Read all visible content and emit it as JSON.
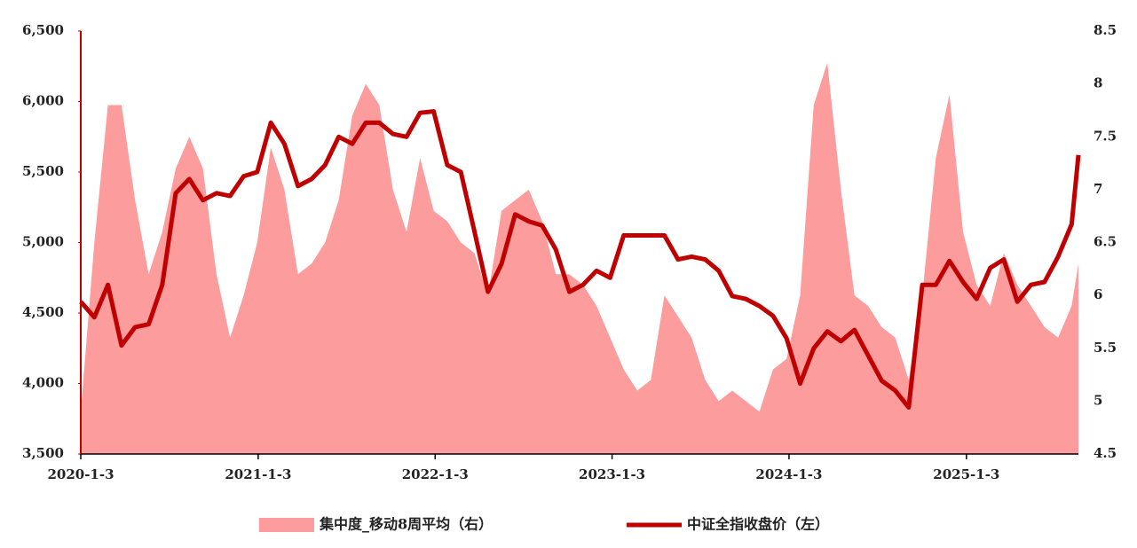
{
  "chart_data": {
    "type": "line",
    "x": [
      "2020-01-03",
      "2020-01-31",
      "2020-02-28",
      "2020-03-27",
      "2020-04-24",
      "2020-05-22",
      "2020-06-19",
      "2020-07-17",
      "2020-08-14",
      "2020-09-11",
      "2020-10-09",
      "2020-11-06",
      "2020-12-04",
      "2021-01-01",
      "2021-01-29",
      "2021-02-26",
      "2021-03-26",
      "2021-04-23",
      "2021-05-21",
      "2021-06-18",
      "2021-07-16",
      "2021-08-13",
      "2021-09-10",
      "2021-10-08",
      "2021-11-05",
      "2021-12-03",
      "2021-12-31",
      "2022-01-28",
      "2022-02-25",
      "2022-03-25",
      "2022-04-22",
      "2022-05-20",
      "2022-06-17",
      "2022-07-15",
      "2022-08-12",
      "2022-09-09",
      "2022-10-07",
      "2022-11-04",
      "2022-12-02",
      "2022-12-30",
      "2023-01-27",
      "2023-02-24",
      "2023-03-24",
      "2023-04-21",
      "2023-05-19",
      "2023-06-16",
      "2023-07-14",
      "2023-08-11",
      "2023-09-08",
      "2023-10-06",
      "2023-11-03",
      "2023-12-01",
      "2023-12-29",
      "2024-01-26",
      "2024-02-23",
      "2024-03-22",
      "2024-04-19",
      "2024-05-17",
      "2024-06-14",
      "2024-07-12",
      "2024-08-09",
      "2024-09-06",
      "2024-10-04",
      "2024-11-01",
      "2024-11-29",
      "2024-12-27",
      "2025-01-24",
      "2025-02-21",
      "2025-03-21",
      "2025-04-18",
      "2025-05-16",
      "2025-06-13",
      "2025-07-11",
      "2025-08-08",
      "2025-08-22"
    ],
    "xlim": [
      "2020-01-03",
      "2025-08-22"
    ],
    "xticks": [
      {
        "value": "2020-01-03",
        "label": "2020-1-3"
      },
      {
        "value": "2021-01-03",
        "label": "2021-1-3"
      },
      {
        "value": "2022-01-03",
        "label": "2022-1-3"
      },
      {
        "value": "2023-01-03",
        "label": "2023-1-3"
      },
      {
        "value": "2024-01-03",
        "label": "2024-1-3"
      },
      {
        "value": "2025-01-03",
        "label": "2025-1-3"
      }
    ],
    "ylim": [
      3500,
      6500
    ],
    "yticks": [
      {
        "value": 3500,
        "label": "3,500"
      },
      {
        "value": 4000,
        "label": "4,000"
      },
      {
        "value": 4500,
        "label": "4,500"
      },
      {
        "value": 5000,
        "label": "5,000"
      },
      {
        "value": 5500,
        "label": "5,500"
      },
      {
        "value": 6000,
        "label": "6,000"
      },
      {
        "value": 6500,
        "label": "6,500"
      }
    ],
    "y2lim": [
      4.5,
      8.5
    ],
    "y2ticks": [
      4.5,
      5,
      5.5,
      6,
      6.5,
      7,
      7.5,
      8,
      8.5
    ],
    "legend": "bottom",
    "series": [
      {
        "name": "集中度_移动8周平均（右）",
        "type": "area",
        "axis": "y2",
        "color": "#fc9c9c",
        "values": [
          4.9,
          6.5,
          7.8,
          7.8,
          6.9,
          6.2,
          6.6,
          7.2,
          7.5,
          7.2,
          6.2,
          5.6,
          6.0,
          6.5,
          7.4,
          7.0,
          6.2,
          6.3,
          6.5,
          6.9,
          7.7,
          8.0,
          7.8,
          7.0,
          6.6,
          7.3,
          6.8,
          6.7,
          6.5,
          6.4,
          6.0,
          6.8,
          6.9,
          7.0,
          6.7,
          6.2,
          6.2,
          6.1,
          5.9,
          5.6,
          5.3,
          5.1,
          5.2,
          6.0,
          5.8,
          5.6,
          5.2,
          5.0,
          5.1,
          5.0,
          4.9,
          5.3,
          5.4,
          6.0,
          7.8,
          8.2,
          7.0,
          6.0,
          5.9,
          5.7,
          5.6,
          5.2,
          6.0,
          7.3,
          7.9,
          6.6,
          6.1,
          5.9,
          6.4,
          6.1,
          5.9,
          5.7,
          5.6,
          5.9,
          6.3
        ]
      },
      {
        "name": "中证全指收盘价（左）",
        "type": "line",
        "color": "#c00000",
        "values": [
          4580,
          4470,
          4700,
          4270,
          4400,
          4420,
          4700,
          5350,
          5450,
          5300,
          5350,
          5330,
          5470,
          5500,
          5850,
          5700,
          5400,
          5450,
          5550,
          5750,
          5700,
          5850,
          5850,
          5770,
          5750,
          5920,
          5930,
          5550,
          5500,
          5080,
          4650,
          4850,
          5200,
          5150,
          5120,
          4950,
          4650,
          4700,
          4800,
          4750,
          5050,
          5050,
          5050,
          5050,
          4880,
          4900,
          4880,
          4800,
          4620,
          4600,
          4550,
          4480,
          4320,
          4000,
          4250,
          4370,
          4300,
          4380,
          4200,
          4020,
          3950,
          3830,
          4700,
          4700,
          4870,
          4720,
          4600,
          4820,
          4880,
          4580,
          4700,
          4720,
          4900,
          5130,
          5620
        ]
      }
    ]
  }
}
